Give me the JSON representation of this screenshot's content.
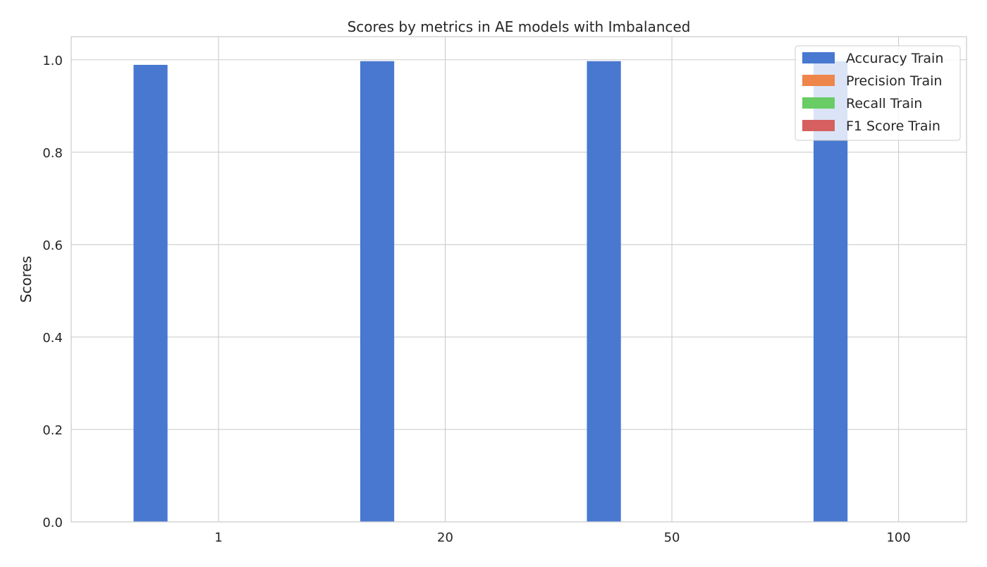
{
  "chart_data": {
    "type": "bar",
    "title": "Scores by metrics in AE models with Imbalanced",
    "xlabel": "",
    "ylabel": "Scores",
    "categories": [
      "1",
      "20",
      "50",
      "100"
    ],
    "ylim": [
      0,
      1.05
    ],
    "yticks": [
      0.0,
      0.2,
      0.4,
      0.6,
      0.8,
      1.0
    ],
    "ytick_labels": [
      "0.0",
      "0.2",
      "0.4",
      "0.6",
      "0.8",
      "1.0"
    ],
    "grid": true,
    "legend_position": "top-right",
    "series": [
      {
        "name": "Accuracy Train",
        "color": "#4878d0",
        "values": [
          0.989,
          0.997,
          0.997,
          0.997
        ]
      },
      {
        "name": "Precision Train",
        "color": "#ee854a",
        "values": [
          0,
          0,
          0,
          0
        ]
      },
      {
        "name": "Recall Train",
        "color": "#6acc64",
        "values": [
          0,
          0,
          0,
          0
        ]
      },
      {
        "name": "F1 Score Train",
        "color": "#d65f5f",
        "values": [
          0,
          0,
          0,
          0
        ]
      }
    ]
  }
}
